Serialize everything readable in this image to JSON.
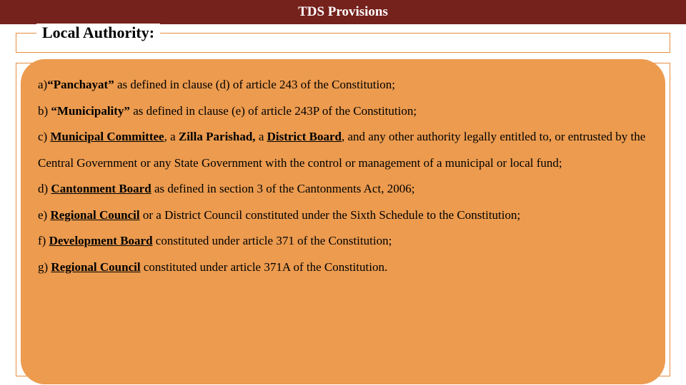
{
  "colors": {
    "header_bg": "#75211c",
    "header_text": "#ffffff",
    "border": "#e78c3e",
    "box_bg": "#ec9b4f",
    "text": "#000000"
  },
  "typography": {
    "header_fontsize": 19,
    "section_title_fontsize": 22,
    "body_fontsize": 17,
    "line_height": 2.15,
    "font_family": "Georgia, serif"
  },
  "header": {
    "title": "TDS Provisions"
  },
  "section": {
    "title": "Local Authority:"
  },
  "items": {
    "a_prefix": "a)",
    "a_bold": "“Panchayat”",
    "a_rest": " as defined in clause (d) of article 243 of the Constitution;",
    "b_prefix": "b) ",
    "b_bold": "“Municipality”",
    "b_rest": " as defined in clause (e) of article 243P of the Constitution;",
    "c_prefix": "c) ",
    "c_b1": "Municipal Committee",
    "c_mid1": ", a ",
    "c_b2": "Zilla Parishad,",
    "c_mid2": " a ",
    "c_b3": "District Board",
    "c_rest": ", and any other authority legally entitled to, or entrusted by the Central Government or any State Government with the control or management of a municipal or local fund;",
    "d_prefix": "d) ",
    "d_bold": "Cantonment Board",
    "d_rest": " as defined in section 3 of the Cantonments Act, 2006;",
    "e_prefix": "e) ",
    "e_bold": "Regional Council",
    "e_rest": " or a District Council constituted under the Sixth Schedule to the Constitution;",
    "f_prefix": "f) ",
    "f_bold": "Development Board",
    "f_rest": " constituted under article 371 of the Constitution;",
    "g_prefix": "g) ",
    "g_bold": "Regional Council",
    "g_rest": " constituted under article 371A of the Constitution."
  }
}
